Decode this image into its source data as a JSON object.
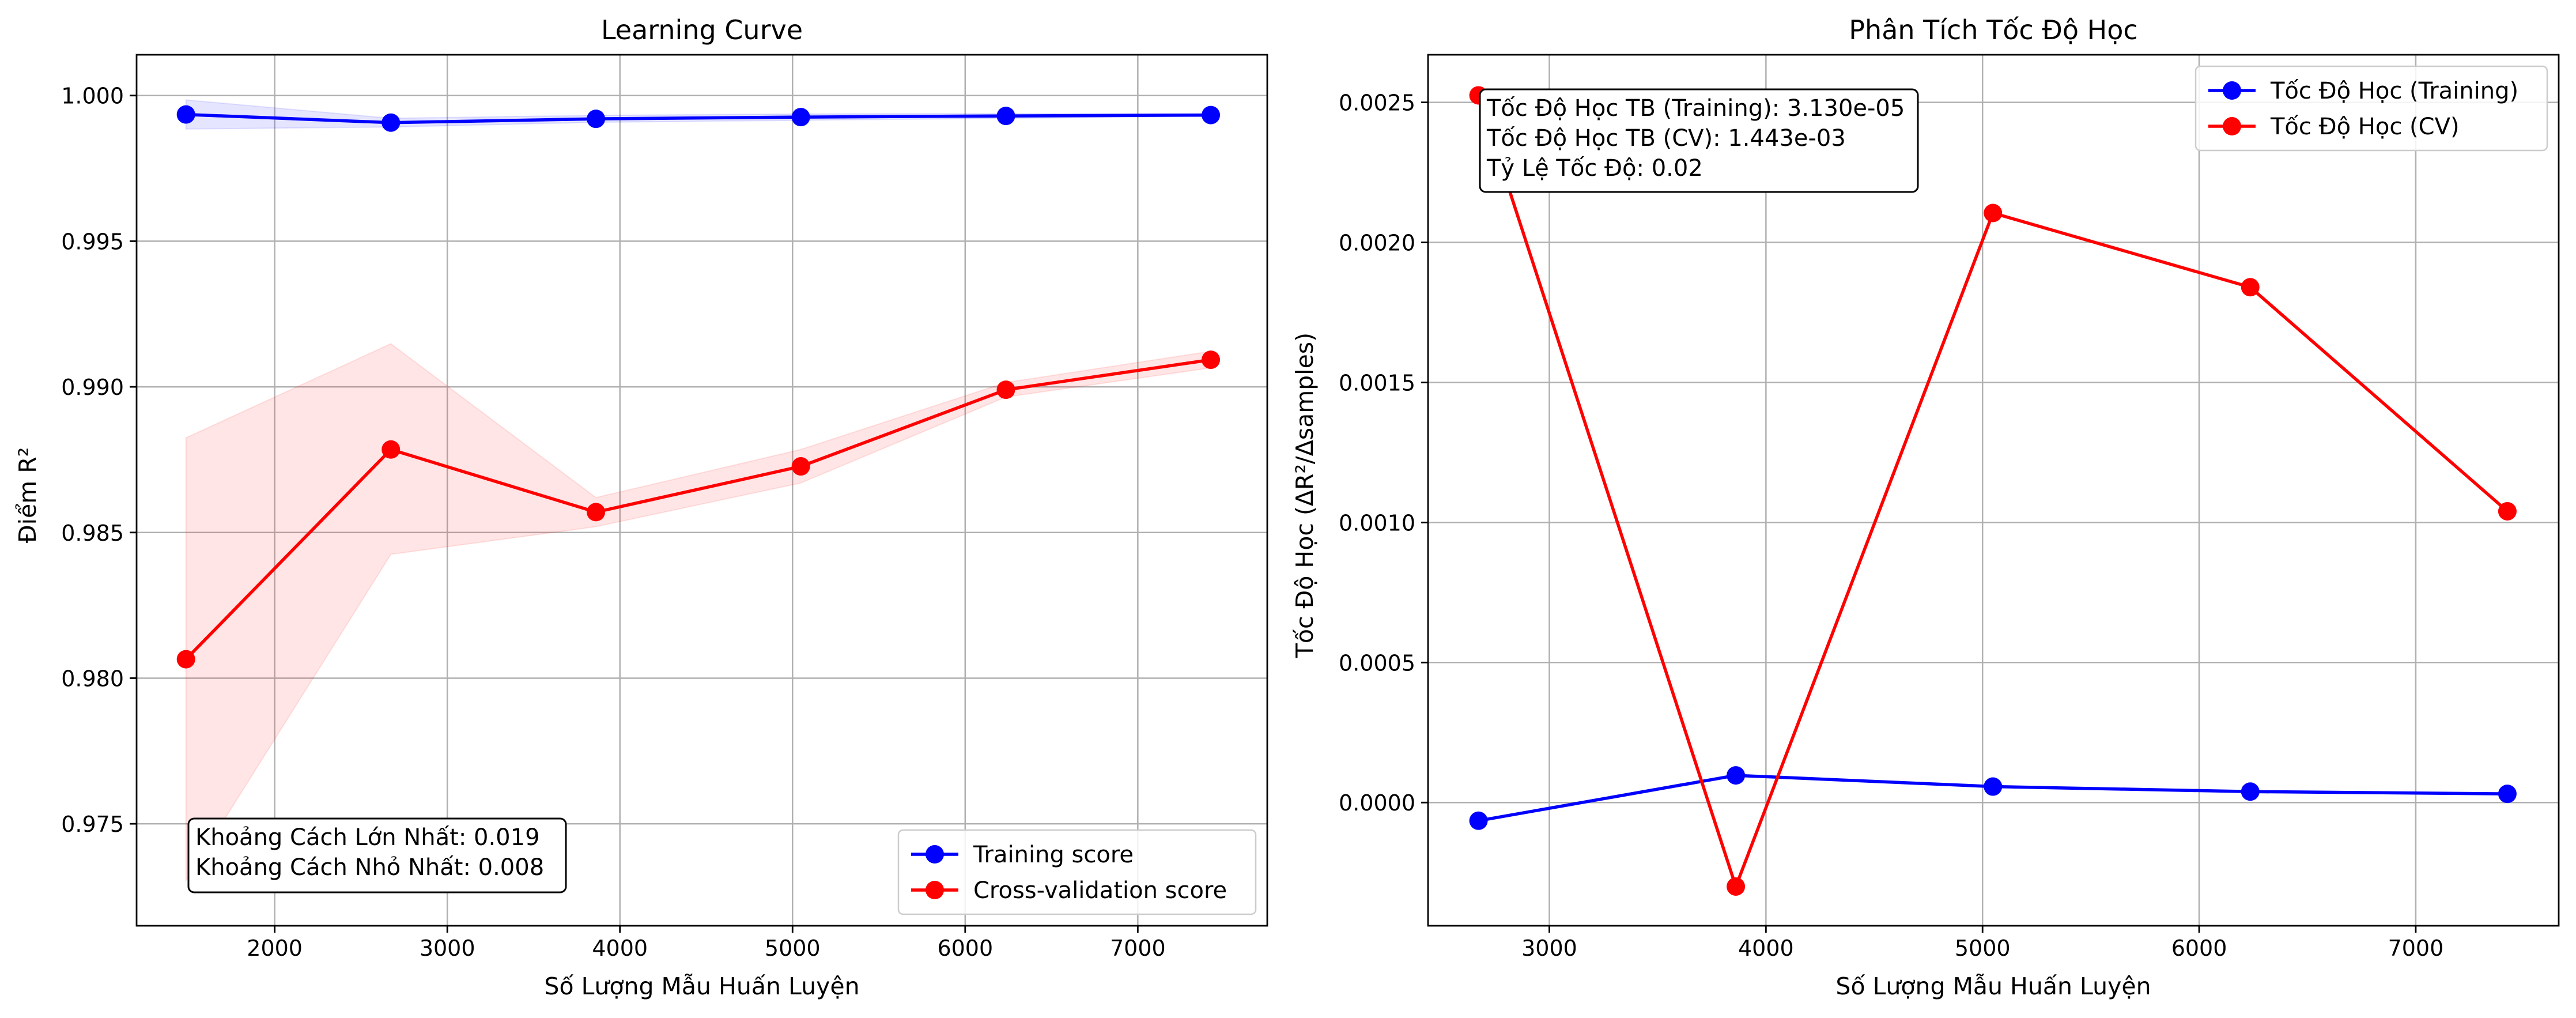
{
  "chart_data": [
    {
      "type": "line",
      "title": "Learning Curve",
      "xlabel": "Số Lượng Mẫu Huấn Luyện",
      "ylabel": "Điểm R²",
      "xlim": [
        1200,
        7750
      ],
      "ylim": [
        0.9715,
        1.0014
      ],
      "xticks": [
        2000,
        3000,
        4000,
        5000,
        6000,
        7000
      ],
      "xtick_labels": [
        "2000",
        "3000",
        "4000",
        "5000",
        "6000",
        "7000"
      ],
      "yticks": [
        0.975,
        0.98,
        0.985,
        0.99,
        0.995,
        1.0
      ],
      "ytick_labels": [
        "0.975",
        "0.980",
        "0.985",
        "0.990",
        "0.995",
        "1.000"
      ],
      "grid": true,
      "legend_position": "lower-right",
      "x": [
        1486,
        2673,
        3861,
        5048,
        6236,
        7423
      ],
      "series": [
        {
          "name": "Training score",
          "color": "#0000ff",
          "values": [
            0.99935,
            0.99907,
            0.9992,
            0.99926,
            0.9993,
            0.99933
          ],
          "band_low": [
            0.99885,
            0.99892,
            0.99908,
            0.99915,
            0.99922,
            0.99928
          ],
          "band_high": [
            0.99985,
            0.99922,
            0.99932,
            0.99937,
            0.99938,
            0.99938
          ]
        },
        {
          "name": "Cross-validation score",
          "color": "#ff0000",
          "values": [
            0.98065,
            0.98785,
            0.9857,
            0.98727,
            0.9899,
            0.99093
          ],
          "band_low": [
            0.97305,
            0.98425,
            0.9852,
            0.9867,
            0.98965,
            0.99065
          ],
          "band_high": [
            0.98825,
            0.99148,
            0.9862,
            0.98785,
            0.99015,
            0.99122
          ]
        }
      ],
      "annotation": {
        "lines": [
          "Khoảng Cách Lớn Nhất: 0.019",
          "Khoảng Cách Nhỏ Nhất: 0.008"
        ],
        "position": "lower-left"
      }
    },
    {
      "type": "line",
      "title": "Phân Tích Tốc Độ Học",
      "xlabel": "Số Lượng Mẫu Huấn Luyện",
      "ylabel": "Tốc Độ Học (ΔR²/Δsamples)",
      "xlim": [
        2440,
        7660
      ],
      "ylim": [
        -0.00044,
        0.00267
      ],
      "xticks": [
        3000,
        4000,
        5000,
        6000,
        7000
      ],
      "xtick_labels": [
        "3000",
        "4000",
        "5000",
        "6000",
        "7000"
      ],
      "yticks": [
        0.0,
        0.0005,
        0.001,
        0.0015,
        0.002,
        0.0025
      ],
      "ytick_labels": [
        "0.0000",
        "0.0005",
        "0.0010",
        "0.0015",
        "0.0020",
        "0.0025"
      ],
      "grid": true,
      "legend_position": "upper-right",
      "x": [
        2673,
        3861,
        5048,
        6236,
        7423
      ],
      "series": [
        {
          "name": "Tốc Độ Học (Training)",
          "color": "#0000ff",
          "values": [
            -6.5e-05,
            9.7e-05,
            5.7e-05,
            3.9e-05,
            3.1e-05
          ]
        },
        {
          "name": "Tốc Độ Học (CV)",
          "color": "#ff0000",
          "values": [
            0.002525,
            -0.0003,
            0.002105,
            0.00184,
            0.00104
          ]
        }
      ],
      "annotation": {
        "lines": [
          "Tốc Độ Học TB (Training): 3.130e-05",
          "Tốc Độ Học TB (CV): 1.443e-03",
          "Tỷ Lệ Tốc Độ: 0.02"
        ],
        "position": "upper-left"
      }
    }
  ]
}
